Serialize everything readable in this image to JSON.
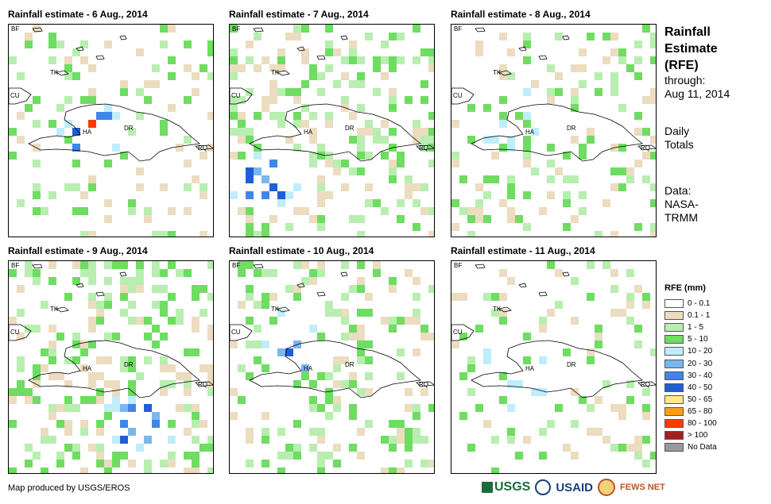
{
  "panels": [
    {
      "title": "Rainfall estimate - 6 Aug., 2014"
    },
    {
      "title": "Rainfall estimate - 7 Aug., 2014"
    },
    {
      "title": "Rainfall estimate - 8 Aug., 2014"
    },
    {
      "title": "Rainfall estimate - 9 Aug., 2014"
    },
    {
      "title": "Rainfall estimate - 10 Aug., 2014"
    },
    {
      "title": "Rainfall estimate - 11 Aug., 2014"
    }
  ],
  "map_labels": {
    "bf": "BF",
    "tk": "TK",
    "cu": "CU",
    "ha": "HA",
    "dr": "DR",
    "rq": "RQ"
  },
  "sidebar": {
    "title_line1": "Rainfall",
    "title_line2": "Estimate",
    "title_line3": "(RFE)",
    "through_label": "through:",
    "through_date": "Aug 11, 2014",
    "totals_line1": "Daily",
    "totals_line2": "Totals",
    "data_label": "Data:",
    "data_source_line1": "NASA-",
    "data_source_line2": "TRMM"
  },
  "legend": {
    "title": "RFE (mm)",
    "items": [
      {
        "label": "0 - 0.1",
        "color": "#ffffff"
      },
      {
        "label": "0.1 - 1",
        "color": "#ecdcc0"
      },
      {
        "label": "1 - 5",
        "color": "#b8eeb0"
      },
      {
        "label": "5 - 10",
        "color": "#6fdc62"
      },
      {
        "label": "10 - 20",
        "color": "#bfeefa"
      },
      {
        "label": "20 - 30",
        "color": "#7ab6f0"
      },
      {
        "label": "30 - 40",
        "color": "#3f86e6"
      },
      {
        "label": "40 - 50",
        "color": "#1e5fd6"
      },
      {
        "label": "50 - 65",
        "color": "#fde88a"
      },
      {
        "label": "65 - 80",
        "color": "#ff9d10"
      },
      {
        "label": "80 - 100",
        "color": "#ff3a00"
      },
      {
        "label": "> 100",
        "color": "#a52020"
      },
      {
        "label": "No Data",
        "color": "#999999"
      }
    ]
  },
  "footer": {
    "credit": "Map produced by USGS/EROS"
  },
  "logos": {
    "usgs": "USGS",
    "usaid": "USAID",
    "fews": "FEWS NET"
  }
}
